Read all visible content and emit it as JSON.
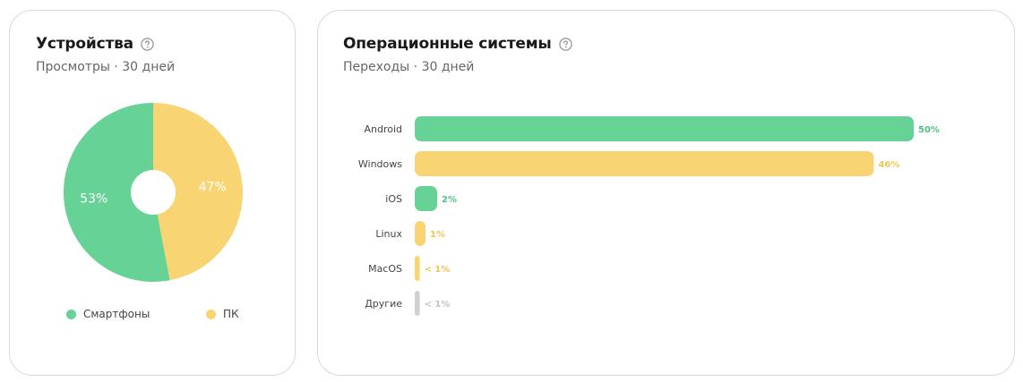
{
  "colors": {
    "green": "#66d296",
    "yellow": "#f8d473",
    "gray": "#d0d0d0",
    "green_text": "#4fc283",
    "yellow_text": "#f0c658",
    "gray_text": "#c4c4c4"
  },
  "devices": {
    "title": "Устройства",
    "subtitle": "Просмотры · 30 дней",
    "help_icon": "question-circle-icon"
  },
  "os": {
    "title": "Операционные системы",
    "subtitle": "Переходы · 30 дней",
    "help_icon": "question-circle-icon"
  },
  "chart_data": [
    {
      "type": "pie",
      "title": "Устройства",
      "subtitle": "Просмотры · 30 дней",
      "categories": [
        "Смартфоны",
        "ПК"
      ],
      "values": [
        53,
        47
      ],
      "labels": [
        "53%",
        "47%"
      ],
      "colors": [
        "#66d296",
        "#f8d473"
      ],
      "donut": true,
      "legend": "bottom"
    },
    {
      "type": "bar",
      "orientation": "horizontal",
      "title": "Операционные системы",
      "subtitle": "Переходы · 30 дней",
      "categories": [
        "Android",
        "Windows",
        "iOS",
        "Linux",
        "MacOS",
        "Другие"
      ],
      "values": [
        50,
        46,
        2,
        1,
        0.5,
        0.5
      ],
      "labels": [
        "50%",
        "46%",
        "2%",
        "1%",
        "< 1%",
        "< 1%"
      ],
      "colors": [
        "#66d296",
        "#f8d473",
        "#66d296",
        "#f8d473",
        "#f8d473",
        "#d0d0d0"
      ],
      "label_colors": [
        "#4fc283",
        "#f0c658",
        "#4fc283",
        "#f0c658",
        "#f0c658",
        "#c4c4c4"
      ],
      "xlim": [
        0,
        50
      ],
      "grid": false
    }
  ]
}
